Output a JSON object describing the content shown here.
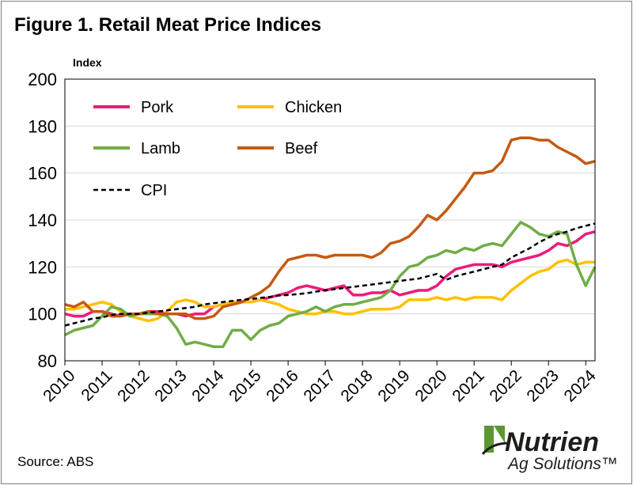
{
  "title": "Figure 1. Retail Meat Price Indices",
  "source": "Source: ABS",
  "logo": {
    "brand": "Nutrien",
    "tagline": "Ag Solutions™"
  },
  "colors": {
    "Pork": "#ec1c7a",
    "Chicken": "#ffc000",
    "Lamb": "#70ad47",
    "Beef": "#c55a11",
    "CPI": "#000000",
    "grid": "#d9d9d9",
    "logo_green": "#5e9732",
    "logo_dark": "#1d1d1b"
  },
  "chart_data": {
    "type": "line",
    "title": "Figure 1. Retail Meat Price Indices",
    "ylabel": "Index",
    "xlabel": "",
    "ylim": [
      80,
      200
    ],
    "yticks": [
      80,
      100,
      120,
      140,
      160,
      180,
      200
    ],
    "xlim": [
      2010,
      2024.3
    ],
    "xticks": [
      "2010",
      "2011",
      "2012",
      "2013",
      "2014",
      "2015",
      "2016",
      "2017",
      "2018",
      "2019",
      "2020",
      "2021",
      "2022",
      "2023",
      "2024"
    ],
    "grid": "horizontal",
    "legend_position": "top-left",
    "legend": [
      "Pork",
      "Chicken",
      "Lamb",
      "Beef",
      "CPI"
    ],
    "series": [
      {
        "name": "Pork",
        "x": [
          2010,
          2010.25,
          2010.5,
          2010.75,
          2011,
          2011.25,
          2011.5,
          2011.75,
          2012,
          2012.25,
          2012.5,
          2012.75,
          2013,
          2013.25,
          2013.5,
          2013.75,
          2014,
          2014.25,
          2014.5,
          2014.75,
          2015,
          2015.25,
          2015.5,
          2015.75,
          2016,
          2016.25,
          2016.5,
          2016.75,
          2017,
          2017.25,
          2017.5,
          2017.75,
          2018,
          2018.25,
          2018.5,
          2018.75,
          2019,
          2019.25,
          2019.5,
          2019.75,
          2020,
          2020.25,
          2020.5,
          2020.75,
          2021,
          2021.25,
          2021.5,
          2021.75,
          2022,
          2022.25,
          2022.5,
          2022.75,
          2023,
          2023.25,
          2023.5,
          2023.75,
          2024,
          2024.25
        ],
        "y": [
          100,
          99,
          99,
          101,
          101,
          100,
          99,
          100,
          100,
          101,
          101,
          100,
          100,
          99,
          100,
          100,
          103,
          104,
          104,
          105,
          105,
          106,
          107,
          108,
          109,
          111,
          112,
          111,
          110,
          111,
          112,
          108,
          108,
          109,
          109,
          110,
          108,
          109,
          110,
          110,
          112,
          116,
          119,
          120,
          121,
          121,
          121,
          120,
          122,
          123,
          124,
          125,
          127,
          130,
          129,
          131,
          134,
          135
        ]
      },
      {
        "name": "Chicken",
        "x": [
          2010,
          2010.25,
          2010.5,
          2010.75,
          2011,
          2011.25,
          2011.5,
          2011.75,
          2012,
          2012.25,
          2012.5,
          2012.75,
          2013,
          2013.25,
          2013.5,
          2013.75,
          2014,
          2014.25,
          2014.5,
          2014.75,
          2015,
          2015.25,
          2015.5,
          2015.75,
          2016,
          2016.25,
          2016.5,
          2016.75,
          2017,
          2017.25,
          2017.5,
          2017.75,
          2018,
          2018.25,
          2018.5,
          2018.75,
          2019,
          2019.25,
          2019.5,
          2019.75,
          2020,
          2020.25,
          2020.5,
          2020.75,
          2021,
          2021.25,
          2021.5,
          2021.75,
          2022,
          2022.25,
          2022.5,
          2022.75,
          2023,
          2023.25,
          2023.5,
          2023.75,
          2024,
          2024.25
        ],
        "y": [
          102,
          102,
          103,
          104,
          105,
          104,
          101,
          99,
          98,
          97,
          98,
          101,
          105,
          106,
          105,
          103,
          103,
          104,
          105,
          105,
          105,
          106,
          105,
          104,
          102,
          101,
          100,
          100,
          101,
          101,
          100,
          100,
          101,
          102,
          102,
          102,
          103,
          106,
          106,
          106,
          107,
          106,
          107,
          106,
          107,
          107,
          107,
          106,
          110,
          113,
          116,
          118,
          119,
          122,
          123,
          121,
          122,
          122
        ]
      },
      {
        "name": "Lamb",
        "x": [
          2010,
          2010.25,
          2010.5,
          2010.75,
          2011,
          2011.25,
          2011.5,
          2011.75,
          2012,
          2012.25,
          2012.5,
          2012.75,
          2013,
          2013.25,
          2013.5,
          2013.75,
          2014,
          2014.25,
          2014.5,
          2014.75,
          2015,
          2015.25,
          2015.5,
          2015.75,
          2016,
          2016.25,
          2016.5,
          2016.75,
          2017,
          2017.25,
          2017.5,
          2017.75,
          2018,
          2018.25,
          2018.5,
          2018.75,
          2019,
          2019.25,
          2019.5,
          2019.75,
          2020,
          2020.25,
          2020.5,
          2020.75,
          2021,
          2021.25,
          2021.5,
          2021.75,
          2022,
          2022.25,
          2022.5,
          2022.75,
          2023,
          2023.25,
          2023.5,
          2023.75,
          2024,
          2024.25
        ],
        "y": [
          91,
          93,
          94,
          95,
          99,
          103,
          102,
          99,
          100,
          100,
          100,
          99,
          94,
          87,
          88,
          87,
          86,
          86,
          93,
          93,
          89,
          93,
          95,
          96,
          99,
          100,
          101,
          103,
          101,
          103,
          104,
          104,
          105,
          106,
          107,
          110,
          116,
          120,
          121,
          124,
          125,
          127,
          126,
          128,
          127,
          129,
          130,
          129,
          134,
          139,
          137,
          134,
          133,
          135,
          134,
          121,
          112,
          120
        ]
      },
      {
        "name": "Beef",
        "x": [
          2010,
          2010.25,
          2010.5,
          2010.75,
          2011,
          2011.25,
          2011.5,
          2011.75,
          2012,
          2012.25,
          2012.5,
          2012.75,
          2013,
          2013.25,
          2013.5,
          2013.75,
          2014,
          2014.25,
          2014.5,
          2014.75,
          2015,
          2015.25,
          2015.5,
          2015.75,
          2016,
          2016.25,
          2016.5,
          2016.75,
          2017,
          2017.25,
          2017.5,
          2017.75,
          2018,
          2018.25,
          2018.5,
          2018.75,
          2019,
          2019.25,
          2019.5,
          2019.75,
          2020,
          2020.25,
          2020.5,
          2020.75,
          2021,
          2021.25,
          2021.5,
          2021.75,
          2022,
          2022.25,
          2022.5,
          2022.75,
          2023,
          2023.25,
          2023.5,
          2023.75,
          2024,
          2024.25
        ],
        "y": [
          104,
          103,
          105,
          101,
          101,
          99,
          99,
          100,
          100,
          101,
          100,
          100,
          100,
          100,
          98,
          98,
          99,
          103,
          104,
          105,
          107,
          109,
          112,
          118,
          123,
          124,
          125,
          125,
          124,
          125,
          125,
          125,
          125,
          124,
          126,
          130,
          131,
          133,
          137,
          142,
          140,
          144,
          149,
          154,
          160,
          160,
          161,
          165,
          174,
          175,
          175,
          174,
          174,
          171,
          169,
          167,
          164,
          165
        ]
      },
      {
        "name": "CPI",
        "x": [
          2010,
          2010.25,
          2010.5,
          2010.75,
          2011,
          2011.25,
          2011.5,
          2011.75,
          2012,
          2012.25,
          2012.5,
          2012.75,
          2013,
          2013.25,
          2013.5,
          2013.75,
          2014,
          2014.25,
          2014.5,
          2014.75,
          2015,
          2015.25,
          2015.5,
          2015.75,
          2016,
          2016.25,
          2016.5,
          2016.75,
          2017,
          2017.25,
          2017.5,
          2017.75,
          2018,
          2018.25,
          2018.5,
          2018.75,
          2019,
          2019.25,
          2019.5,
          2019.75,
          2020,
          2020.25,
          2020.5,
          2020.75,
          2021,
          2021.25,
          2021.5,
          2021.75,
          2022,
          2022.25,
          2022.5,
          2022.75,
          2023,
          2023.25,
          2023.5,
          2023.75,
          2024,
          2024.25
        ],
        "y": [
          95,
          96,
          97,
          98,
          98.5,
          99.5,
          100,
          100,
          100,
          100.5,
          101,
          101.5,
          102,
          102.5,
          103,
          104,
          104.5,
          105,
          105.5,
          106,
          106.3,
          106.8,
          107.2,
          107.8,
          108,
          108.4,
          108.8,
          109.5,
          110,
          110.5,
          111,
          111.5,
          112,
          112.5,
          113,
          113.5,
          114,
          114.5,
          115,
          116,
          117,
          114.5,
          116,
          117,
          118,
          119,
          120,
          121,
          124,
          126,
          128,
          130.5,
          132.5,
          134,
          135,
          136.5,
          137.5,
          138.5
        ]
      }
    ]
  }
}
